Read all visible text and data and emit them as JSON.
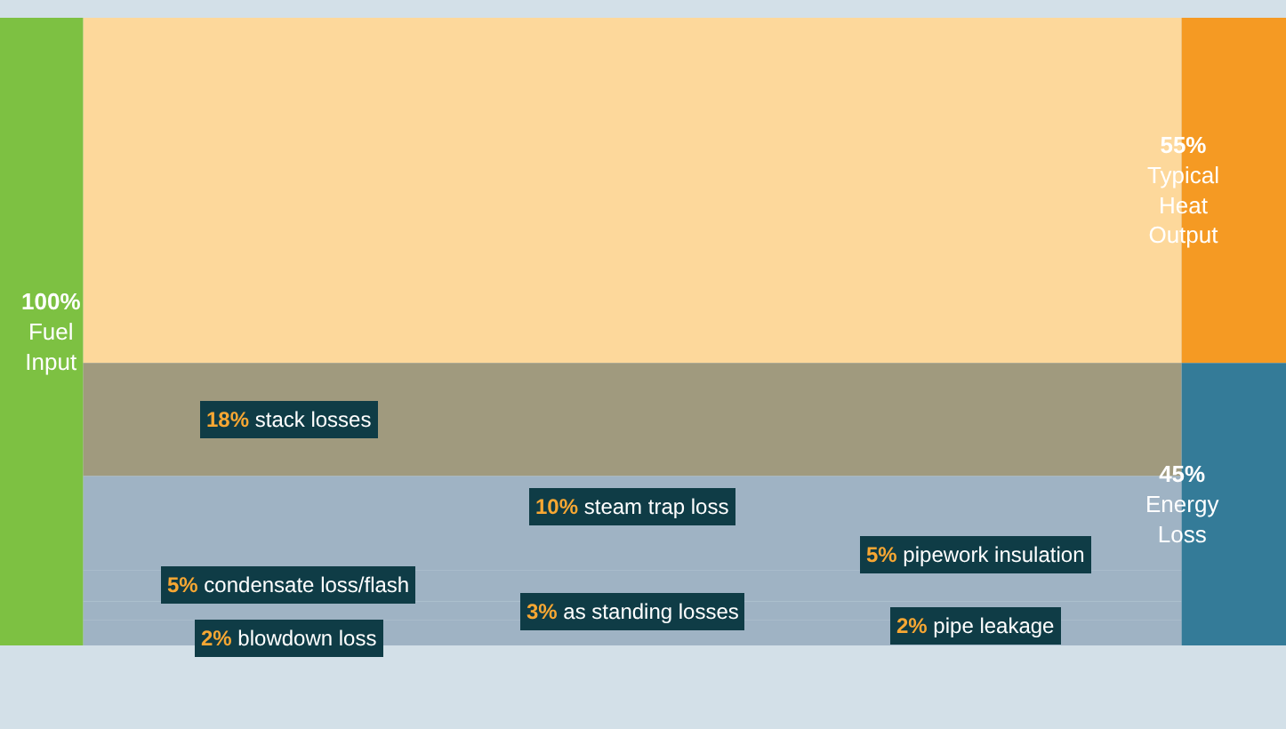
{
  "chart_data": {
    "type": "other",
    "categories": [
      "Fuel Input",
      "Typical Heat Output",
      "Energy Loss",
      "stack losses",
      "steam trap loss",
      "pipework insulation",
      "condensate loss/flash",
      "as standing losses",
      "pipe leakage",
      "blowdown loss"
    ],
    "values": [
      100,
      55,
      45,
      18,
      10,
      5,
      5,
      3,
      2,
      2
    ],
    "value_labels": [
      "100%",
      "55%",
      "45%",
      "18%",
      "10%",
      "5%",
      "5%",
      "3%",
      "2%",
      "2%"
    ]
  }
}
